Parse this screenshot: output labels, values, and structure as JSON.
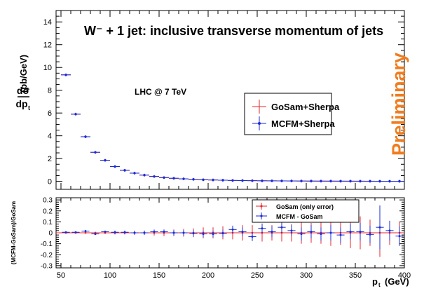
{
  "chart_data": [
    {
      "type": "scatter",
      "title": "W⁻ + 1 jet: inclusive transverse momentum of jets",
      "ylabel_main": "dσ",
      "ylabel_den": "dp",
      "ylabel_sub": "t",
      "ylabel_unit": "(pb/GeV)",
      "annotation": "LHC @ 7 TeV",
      "watermark": "Preliminary",
      "watermark_color": "#f07c1f",
      "xlim": [
        45,
        400
      ],
      "ylim": [
        -0.7,
        15
      ],
      "y_ticks": [
        "0",
        "2",
        "4",
        "6",
        "8",
        "10",
        "12",
        "14"
      ],
      "legend": [
        "GoSam+Sherpa",
        "MCFM+Sherpa"
      ],
      "series_colors": [
        "#e8262e",
        "#1a2ad6"
      ],
      "bin_width": 10,
      "x": [
        55,
        65,
        75,
        85,
        95,
        105,
        115,
        125,
        135,
        145,
        155,
        165,
        175,
        185,
        195,
        205,
        215,
        225,
        235,
        245,
        255,
        265,
        275,
        285,
        295,
        305,
        315,
        325,
        335,
        345,
        355,
        365,
        375,
        385,
        395
      ],
      "values": [
        9.35,
        5.9,
        3.92,
        2.55,
        1.85,
        1.3,
        0.97,
        0.72,
        0.55,
        0.43,
        0.33,
        0.27,
        0.22,
        0.18,
        0.14,
        0.12,
        0.1,
        0.08,
        0.07,
        0.06,
        0.05,
        0.045,
        0.04,
        0.035,
        0.03,
        0.025,
        0.022,
        0.02,
        0.018,
        0.016,
        0.014,
        0.012,
        0.01,
        0.009,
        0.008
      ]
    },
    {
      "type": "scatter",
      "ylabel": "(MCFM-GoSam)/GoSam",
      "xlabel": "p",
      "xlabel_sub": "t",
      "xlabel_unit": "(GeV)",
      "xlim": [
        45,
        400
      ],
      "ylim": [
        -0.32,
        0.32
      ],
      "x_ticks": [
        "50",
        "100",
        "150",
        "200",
        "250",
        "300",
        "350",
        "400"
      ],
      "y_ticks": [
        "-0.3",
        "-0.2",
        "-0.1",
        "0",
        "0.1",
        "0.2",
        "0.3"
      ],
      "legend": [
        "GoSam (only error)",
        "MCFM - GoSam"
      ],
      "x": [
        55,
        65,
        75,
        85,
        95,
        105,
        115,
        125,
        135,
        145,
        155,
        165,
        175,
        185,
        195,
        205,
        215,
        225,
        235,
        245,
        255,
        265,
        275,
        285,
        295,
        305,
        315,
        325,
        335,
        345,
        355,
        365,
        375,
        385,
        395
      ],
      "gosam_err": [
        0.005,
        0.006,
        0.008,
        0.01,
        0.012,
        0.015,
        0.015,
        0.02,
        0.02,
        0.025,
        0.03,
        0.03,
        0.035,
        0.04,
        0.05,
        0.05,
        0.06,
        0.06,
        0.07,
        0.07,
        0.08,
        0.07,
        0.08,
        0.08,
        0.1,
        0.09,
        0.1,
        0.12,
        0.11,
        0.14,
        0.15,
        0.12,
        0.22,
        0.11,
        0.1
      ],
      "diff": [
        0.005,
        0.005,
        0.015,
        -0.01,
        0.01,
        0.005,
        0.005,
        0.0,
        0.0,
        0.01,
        0.01,
        0.0,
        0.0,
        -0.005,
        -0.01,
        -0.01,
        -0.005,
        0.03,
        0.01,
        -0.035,
        0.04,
        0.01,
        0.05,
        0.02,
        -0.01,
        0.01,
        -0.01,
        0.0,
        -0.02,
        0.01,
        0.01,
        -0.015,
        0.05,
        0.02,
        -0.03
      ],
      "diff_err": [
        0.005,
        0.005,
        0.01,
        0.01,
        0.01,
        0.015,
        0.015,
        0.015,
        0.02,
        0.02,
        0.02,
        0.025,
        0.025,
        0.03,
        0.03,
        0.03,
        0.035,
        0.035,
        0.04,
        0.04,
        0.045,
        0.05,
        0.05,
        0.05,
        0.06,
        0.06,
        0.06,
        0.07,
        0.07,
        0.07,
        0.08,
        0.08,
        0.2,
        0.09,
        0.09
      ]
    }
  ]
}
